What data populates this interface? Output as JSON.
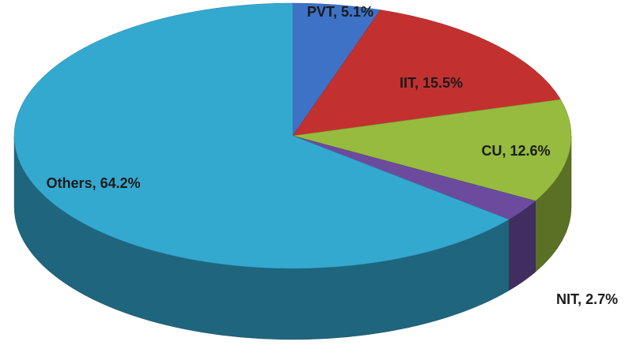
{
  "chart_data": {
    "type": "pie",
    "values": [
      5.1,
      15.5,
      12.6,
      2.7,
      64.2
    ],
    "value_labels": [
      "PVT, 5.1%",
      "IIT, 15.5%",
      "CU, 12.6%",
      "NIT, 2.7%",
      "Others, 64.2%"
    ],
    "colors": [
      "#3d72c6",
      "#c2312f",
      "#96bb3e",
      "#6c4b9f",
      "#33a9d0"
    ]
  }
}
